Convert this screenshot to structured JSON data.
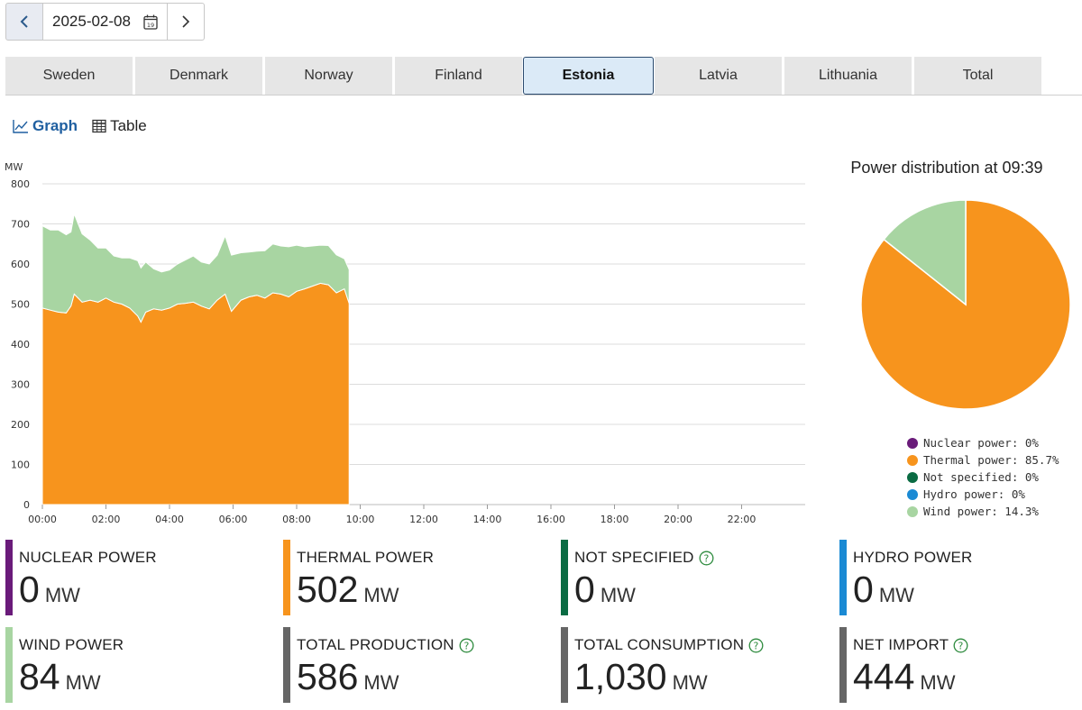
{
  "date": {
    "value": "2025-02-08",
    "calendar_icon_text": "19"
  },
  "tabs": [
    "Sweden",
    "Denmark",
    "Norway",
    "Finland",
    "Estonia",
    "Latvia",
    "Lithuania",
    "Total"
  ],
  "active_tab": "Estonia",
  "views": {
    "graph": "Graph",
    "table": "Table"
  },
  "chart_data": {
    "type": "area",
    "ylabel": "MW",
    "ylim": [
      0,
      800
    ],
    "yticks": [
      "0",
      "100",
      "200",
      "300",
      "400",
      "500",
      "600",
      "700",
      "800"
    ],
    "xticks": [
      "00:00",
      "02:00",
      "04:00",
      "06:00",
      "08:00",
      "10:00",
      "12:00",
      "14:00",
      "16:00",
      "18:00",
      "20:00",
      "22:00"
    ],
    "x_hours": [
      0,
      0.25,
      0.5,
      0.75,
      0.9,
      1.0,
      1.25,
      1.5,
      1.75,
      2.0,
      2.25,
      2.5,
      2.75,
      3.0,
      3.1,
      3.25,
      3.5,
      3.75,
      4.0,
      4.25,
      4.5,
      4.75,
      5.0,
      5.25,
      5.5,
      5.75,
      5.95,
      6.25,
      6.5,
      6.75,
      7.0,
      7.25,
      7.5,
      7.75,
      8.0,
      8.25,
      8.5,
      8.75,
      9.0,
      9.25,
      9.5,
      9.65
    ],
    "series": [
      {
        "name": "Thermal power",
        "color": "#f7941d",
        "values": [
          490,
          485,
          480,
          478,
          495,
          525,
          505,
          510,
          505,
          515,
          505,
          500,
          490,
          470,
          455,
          480,
          488,
          485,
          490,
          500,
          502,
          505,
          495,
          488,
          510,
          525,
          482,
          510,
          518,
          522,
          515,
          528,
          525,
          518,
          532,
          538,
          545,
          552,
          548,
          528,
          538,
          502
        ]
      },
      {
        "name": "Wind power",
        "color": "#a8d5a2",
        "values": [
          205,
          200,
          205,
          195,
          185,
          200,
          170,
          150,
          135,
          125,
          115,
          115,
          125,
          138,
          135,
          125,
          100,
          95,
          95,
          100,
          108,
          115,
          110,
          112,
          112,
          145,
          140,
          118,
          112,
          110,
          118,
          122,
          120,
          125,
          115,
          105,
          100,
          95,
          98,
          95,
          75,
          84
        ]
      }
    ]
  },
  "pie": {
    "title": "Power distribution at 09:39",
    "slices": [
      {
        "label": "Nuclear power: 0%",
        "value": 0,
        "color": "#6a1b7a"
      },
      {
        "label": "Thermal power: 85.7%",
        "value": 85.7,
        "color": "#f7941d"
      },
      {
        "label": "Not specified: 0%",
        "value": 0,
        "color": "#0a6b43"
      },
      {
        "label": "Hydro power: 0%",
        "value": 0,
        "color": "#1a8ad4"
      },
      {
        "label": "Wind power: 14.3%",
        "value": 14.3,
        "color": "#a8d5a2"
      }
    ]
  },
  "stats": [
    {
      "title": "NUCLEAR POWER",
      "value": "0",
      "unit": "MW",
      "color": "#6a1b7a",
      "help": false
    },
    {
      "title": "THERMAL POWER",
      "value": "502",
      "unit": "MW",
      "color": "#f7941d",
      "help": false
    },
    {
      "title": "NOT SPECIFIED",
      "value": "0",
      "unit": "MW",
      "color": "#0a6b43",
      "help": true
    },
    {
      "title": "HYDRO POWER",
      "value": "0",
      "unit": "MW",
      "color": "#1a8ad4",
      "help": false
    },
    {
      "title": "WIND POWER",
      "value": "84",
      "unit": "MW",
      "color": "#a8d5a2",
      "help": false
    },
    {
      "title": "TOTAL PRODUCTION",
      "value": "586",
      "unit": "MW",
      "color": "#666666",
      "help": true
    },
    {
      "title": "TOTAL CONSUMPTION",
      "value": "1,030",
      "unit": "MW",
      "color": "#666666",
      "help": true
    },
    {
      "title": "NET IMPORT",
      "value": "444",
      "unit": "MW",
      "color": "#666666",
      "help": true
    }
  ]
}
